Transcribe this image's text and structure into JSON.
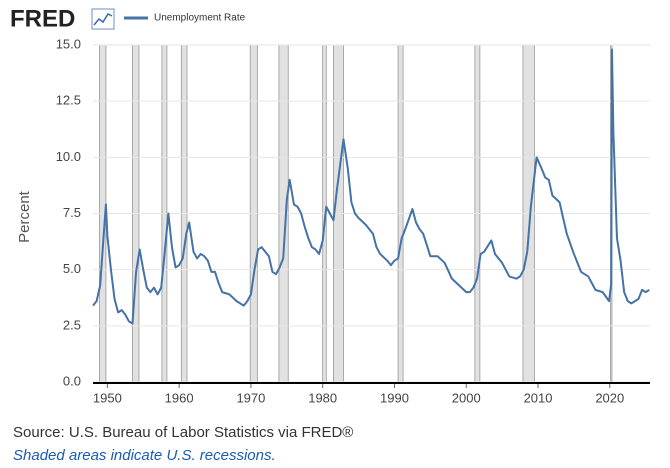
{
  "logo": "FRED",
  "chart_data": {
    "type": "line",
    "ylabel": "Percent",
    "series": [
      {
        "name": "Unemployment Rate",
        "color": "#4572a7",
        "x": [
          1948.0,
          1948.5,
          1949.0,
          1949.5,
          1949.8,
          1950.0,
          1950.5,
          1951.0,
          1951.5,
          1952.0,
          1952.5,
          1953.0,
          1953.5,
          1954.0,
          1954.5,
          1955.0,
          1955.5,
          1956.0,
          1956.5,
          1957.0,
          1957.5,
          1958.0,
          1958.5,
          1959.0,
          1959.5,
          1960.0,
          1960.5,
          1961.0,
          1961.4,
          1962.0,
          1962.5,
          1963.0,
          1963.5,
          1964.0,
          1964.5,
          1965.0,
          1965.5,
          1966.0,
          1967.0,
          1968.0,
          1969.0,
          1969.5,
          1970.0,
          1970.5,
          1971.0,
          1971.5,
          1972.0,
          1972.5,
          1973.0,
          1973.5,
          1974.0,
          1974.5,
          1975.0,
          1975.4,
          1976.0,
          1976.5,
          1977.0,
          1977.5,
          1978.0,
          1978.5,
          1979.0,
          1979.5,
          1980.0,
          1980.5,
          1981.0,
          1981.5,
          1982.0,
          1982.9,
          1983.5,
          1984.0,
          1984.5,
          1985.0,
          1986.0,
          1987.0,
          1987.5,
          1988.0,
          1989.0,
          1989.5,
          1990.0,
          1990.5,
          1991.0,
          1991.5,
          1992.5,
          1993.0,
          1993.5,
          1994.0,
          1994.5,
          1995.0,
          1996.0,
          1997.0,
          1998.0,
          1999.0,
          2000.0,
          2000.5,
          2001.0,
          2001.5,
          2002.0,
          2002.5,
          2003.5,
          2004.0,
          2005.0,
          2006.0,
          2007.0,
          2007.5,
          2008.0,
          2008.5,
          2009.0,
          2009.8,
          2010.5,
          2011.0,
          2011.5,
          2012.0,
          2013.0,
          2014.0,
          2015.0,
          2016.0,
          2017.0,
          2018.0,
          2019.0,
          2019.9,
          2020.2,
          2020.3,
          2020.5,
          2021.0,
          2021.5,
          2022.0,
          2022.5,
          2023.0,
          2023.5,
          2024.0,
          2024.5,
          2025.0,
          2025.5
        ],
        "values": [
          3.4,
          3.6,
          4.3,
          6.6,
          7.9,
          6.5,
          5.0,
          3.7,
          3.1,
          3.2,
          3.0,
          2.7,
          2.6,
          4.9,
          5.9,
          5.0,
          4.2,
          4.0,
          4.2,
          3.9,
          4.2,
          5.8,
          7.5,
          6.0,
          5.1,
          5.2,
          5.5,
          6.6,
          7.1,
          5.8,
          5.5,
          5.7,
          5.6,
          5.4,
          4.9,
          4.9,
          4.4,
          4.0,
          3.9,
          3.6,
          3.4,
          3.6,
          3.9,
          5.0,
          5.9,
          6.0,
          5.8,
          5.6,
          4.9,
          4.8,
          5.1,
          5.5,
          8.1,
          9.0,
          7.9,
          7.8,
          7.5,
          6.9,
          6.4,
          6.0,
          5.9,
          5.7,
          6.3,
          7.8,
          7.5,
          7.2,
          8.6,
          10.8,
          9.5,
          8.0,
          7.5,
          7.3,
          7.0,
          6.6,
          6.0,
          5.7,
          5.4,
          5.2,
          5.4,
          5.5,
          6.4,
          6.8,
          7.7,
          7.1,
          6.8,
          6.6,
          6.1,
          5.6,
          5.6,
          5.3,
          4.6,
          4.3,
          4.0,
          4.0,
          4.2,
          4.6,
          5.7,
          5.8,
          6.3,
          5.7,
          5.3,
          4.7,
          4.6,
          4.7,
          5.0,
          5.8,
          7.8,
          10.0,
          9.5,
          9.1,
          9.0,
          8.3,
          8.0,
          6.6,
          5.7,
          4.9,
          4.7,
          4.1,
          4.0,
          3.6,
          4.4,
          14.8,
          11.1,
          6.4,
          5.4,
          4.0,
          3.6,
          3.5,
          3.6,
          3.7,
          4.1,
          4.0,
          4.1
        ]
      }
    ],
    "recessions": [
      [
        1948.9,
        1949.8
      ],
      [
        1953.5,
        1954.4
      ],
      [
        1957.6,
        1958.3
      ],
      [
        1960.3,
        1961.1
      ],
      [
        1969.9,
        1970.9
      ],
      [
        1973.9,
        1975.2
      ],
      [
        1980.0,
        1980.5
      ],
      [
        1981.5,
        1982.9
      ],
      [
        1990.5,
        1991.2
      ],
      [
        2001.2,
        2001.9
      ],
      [
        2007.9,
        2009.5
      ],
      [
        2020.1,
        2020.3
      ]
    ],
    "xlim": [
      1948,
      2025.6
    ],
    "xticks": [
      1950,
      1960,
      1970,
      1980,
      1990,
      2000,
      2010,
      2020
    ],
    "ylim": [
      0,
      15
    ],
    "yticks": [
      {
        "value": 0,
        "label": "0.0"
      },
      {
        "value": 2.5,
        "label": "2.5"
      },
      {
        "value": 5,
        "label": "5.0"
      },
      {
        "value": 7.5,
        "label": "7.5"
      },
      {
        "value": 10,
        "label": "10.0"
      },
      {
        "value": 12.5,
        "label": "12.5"
      },
      {
        "value": 15,
        "label": "15.0"
      }
    ],
    "grid": true,
    "source": "Source: U.S. Bureau of Labor Statistics via FRED®",
    "note": "Shaded areas indicate U.S. recessions."
  }
}
